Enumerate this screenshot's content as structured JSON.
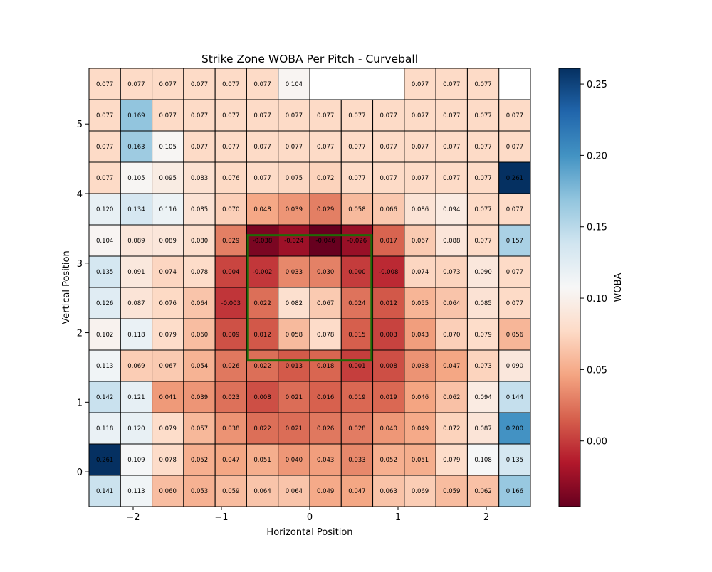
{
  "chart_data": {
    "type": "heatmap",
    "title": "Strike Zone WOBA Per Pitch - Curveball",
    "xlabel": "Horizontal Position",
    "ylabel": "Vertical Position",
    "colorbar_label": "WOBA",
    "colormap": "RdBu",
    "vmin": -0.046,
    "vmax": 0.261,
    "x_edges": [
      -2.5,
      -2.1428,
      -1.7857,
      -1.4286,
      -1.0714,
      -0.7143,
      -0.3571,
      0.0,
      0.3571,
      0.7143,
      1.0714,
      1.4286,
      1.7857,
      2.1429,
      2.5
    ],
    "y_edges": [
      -0.5,
      -0.05,
      0.4,
      0.85,
      1.3,
      1.75,
      2.2,
      2.65,
      3.1,
      3.55,
      4.0,
      4.45,
      4.9,
      5.35,
      5.8
    ],
    "xlim": [
      -2.5,
      2.5
    ],
    "ylim": [
      -0.5,
      5.8
    ],
    "x_ticks": [
      -2,
      -1,
      0,
      1,
      2
    ],
    "x_tick_labels": [
      "−2",
      "−1",
      "0",
      "1",
      "2"
    ],
    "y_ticks": [
      0,
      1,
      2,
      3,
      4,
      5
    ],
    "y_tick_labels": [
      "0",
      "1",
      "2",
      "3",
      "4",
      "5"
    ],
    "colorbar_ticks": [
      0.0,
      0.05,
      0.1,
      0.15,
      0.2,
      0.25
    ],
    "colorbar_tick_labels": [
      "0.00",
      "0.05",
      "0.10",
      "0.15",
      "0.20",
      "0.25"
    ],
    "strike_zone": {
      "x": [
        -0.7,
        0.7
      ],
      "y": [
        1.6,
        3.4
      ],
      "color": "#1f6b06"
    },
    "values": [
      [
        0.077,
        0.077,
        0.077,
        0.077,
        0.077,
        0.077,
        0.104,
        null,
        null,
        null,
        0.077,
        0.077,
        0.077,
        null
      ],
      [
        0.077,
        0.169,
        0.077,
        0.077,
        0.077,
        0.077,
        0.077,
        0.077,
        0.077,
        0.077,
        0.077,
        0.077,
        0.077,
        0.077
      ],
      [
        0.077,
        0.163,
        0.105,
        0.077,
        0.077,
        0.077,
        0.077,
        0.077,
        0.077,
        0.077,
        0.077,
        0.077,
        0.077,
        0.077
      ],
      [
        0.077,
        0.105,
        0.095,
        0.083,
        0.076,
        0.077,
        0.075,
        0.072,
        0.077,
        0.077,
        0.077,
        0.077,
        0.077,
        0.261
      ],
      [
        0.12,
        0.134,
        0.116,
        0.085,
        0.07,
        0.048,
        0.039,
        0.029,
        0.058,
        0.066,
        0.086,
        0.094,
        0.077,
        0.077
      ],
      [
        0.104,
        0.089,
        0.089,
        0.08,
        0.029,
        -0.038,
        -0.024,
        -0.046,
        -0.026,
        0.017,
        0.067,
        0.088,
        0.077,
        0.157
      ],
      [
        0.135,
        0.091,
        0.074,
        0.078,
        0.004,
        -0.002,
        0.033,
        0.03,
        0.0,
        -0.008,
        0.074,
        0.073,
        0.09,
        0.077
      ],
      [
        0.126,
        0.087,
        0.076,
        0.064,
        -0.003,
        0.022,
        0.082,
        0.067,
        0.024,
        0.012,
        0.055,
        0.064,
        0.085,
        0.077
      ],
      [
        0.102,
        0.118,
        0.079,
        0.06,
        0.009,
        0.012,
        0.058,
        0.078,
        0.015,
        0.003,
        0.043,
        0.07,
        0.079,
        0.056
      ],
      [
        0.113,
        0.069,
        0.067,
        0.054,
        0.026,
        0.022,
        0.013,
        0.018,
        0.001,
        0.008,
        0.038,
        0.047,
        0.073,
        0.09
      ],
      [
        0.142,
        0.121,
        0.041,
        0.039,
        0.023,
        0.008,
        0.021,
        0.016,
        0.019,
        0.019,
        0.046,
        0.062,
        0.094,
        0.144
      ],
      [
        0.118,
        0.12,
        0.079,
        0.057,
        0.038,
        0.022,
        0.021,
        0.026,
        0.028,
        0.04,
        0.049,
        0.072,
        0.087,
        0.2
      ],
      [
        0.261,
        0.109,
        0.078,
        0.052,
        0.047,
        0.051,
        0.04,
        0.043,
        0.033,
        0.052,
        0.051,
        0.079,
        0.108,
        0.135
      ],
      [
        0.141,
        0.113,
        0.06,
        0.053,
        0.059,
        0.064,
        0.064,
        0.049,
        0.047,
        0.063,
        0.069,
        0.059,
        0.062,
        0.166
      ]
    ]
  }
}
